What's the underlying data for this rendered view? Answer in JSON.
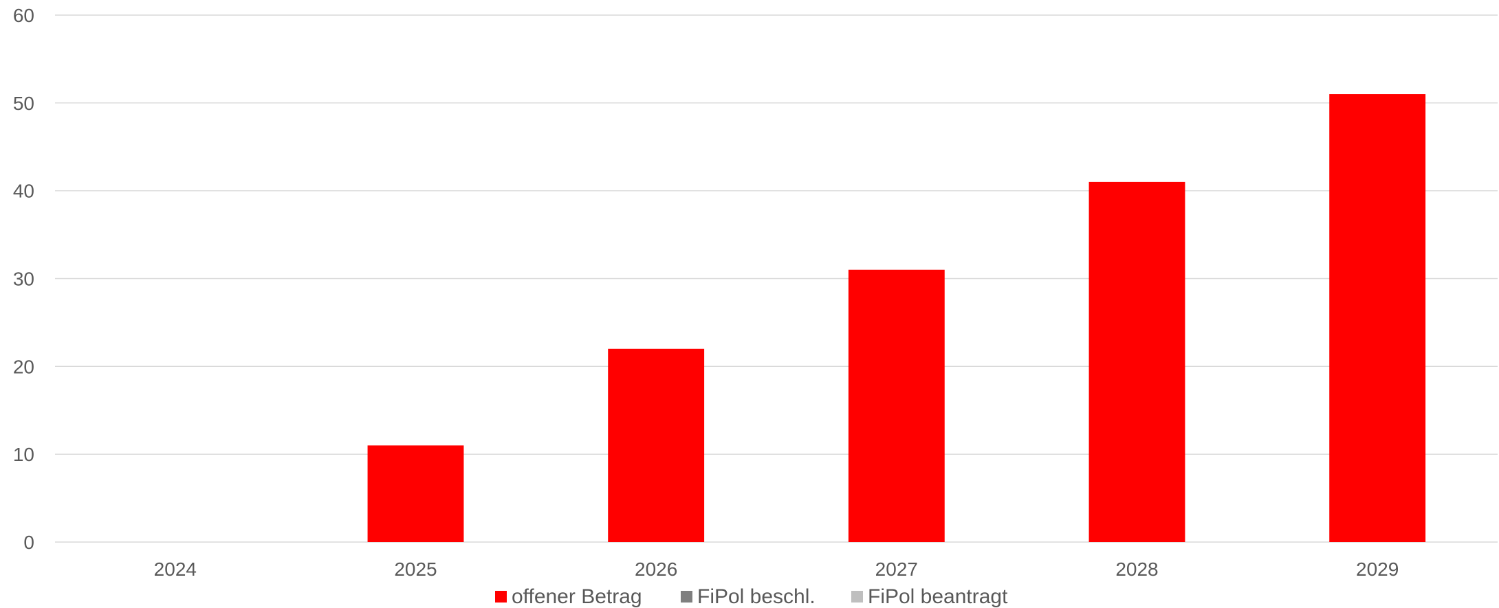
{
  "chart_data": {
    "type": "bar",
    "categories": [
      "2024",
      "2025",
      "2026",
      "2027",
      "2028",
      "2029"
    ],
    "series": [
      {
        "name": "offener Betrag",
        "color": "#ff0000",
        "values": [
          0,
          11,
          22,
          31,
          41,
          51
        ]
      },
      {
        "name": "FiPol beschl.",
        "color": "#7f7f7f",
        "values": [
          0,
          0,
          0,
          0,
          0,
          0
        ]
      },
      {
        "name": "FiPol beantragt",
        "color": "#bfbfbf",
        "values": [
          0,
          0,
          0,
          0,
          0,
          0
        ]
      }
    ],
    "ylim": [
      0,
      60
    ],
    "yticks": [
      0,
      10,
      20,
      30,
      40,
      50,
      60
    ],
    "grid": true,
    "legend": "bottom"
  }
}
